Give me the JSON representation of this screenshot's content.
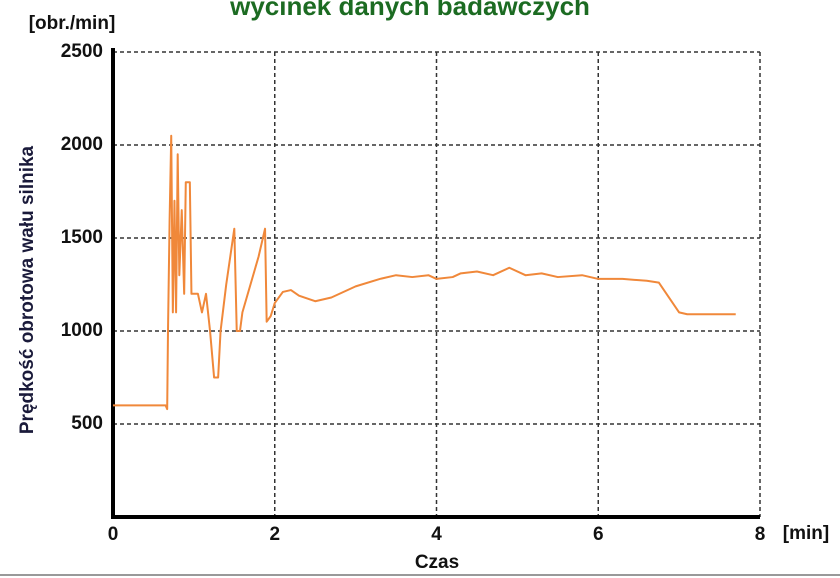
{
  "chart_data": {
    "type": "line",
    "title": "wycinek danych badawczych",
    "x_label": "Czas",
    "x_unit": "[min]",
    "y_label": "Prędkość obrotowa wału silnika",
    "y_unit": "[obr./min]",
    "xlim": [
      0,
      8
    ],
    "xticks": [
      0,
      2,
      4,
      6,
      8
    ],
    "ylim": [
      0,
      2500
    ],
    "yticks": [
      500,
      1000,
      1500,
      2000,
      2500
    ],
    "grid": true,
    "series": [
      {
        "color": "#f0883a",
        "x": [
          0,
          0.65,
          0.67,
          0.68,
          0.7,
          0.72,
          0.74,
          0.76,
          0.78,
          0.8,
          0.82,
          0.85,
          0.88,
          0.9,
          0.95,
          0.97,
          1.05,
          1.1,
          1.15,
          1.2,
          1.25,
          1.3,
          1.33,
          1.4,
          1.45,
          1.5,
          1.53,
          1.57,
          1.6,
          1.7,
          1.8,
          1.88,
          1.9,
          1.95,
          2.0,
          2.1,
          2.2,
          2.3,
          2.5,
          2.7,
          3.0,
          3.3,
          3.5,
          3.7,
          3.9,
          4.0,
          4.2,
          4.3,
          4.5,
          4.7,
          4.9,
          5.1,
          5.3,
          5.5,
          5.8,
          6.0,
          6.3,
          6.6,
          6.75,
          7.0,
          7.1,
          7.7
        ],
        "values": [
          600,
          600,
          580,
          1000,
          1600,
          2050,
          1100,
          1700,
          1100,
          1950,
          1300,
          1650,
          1200,
          1800,
          1800,
          1200,
          1200,
          1100,
          1200,
          1000,
          750,
          750,
          1000,
          1250,
          1400,
          1550,
          1000,
          1000,
          1100,
          1250,
          1400,
          1550,
          1050,
          1080,
          1150,
          1210,
          1220,
          1190,
          1160,
          1180,
          1240,
          1280,
          1300,
          1290,
          1300,
          1280,
          1290,
          1310,
          1320,
          1300,
          1340,
          1300,
          1310,
          1290,
          1300,
          1280,
          1280,
          1270,
          1260,
          1100,
          1090,
          1090
        ]
      }
    ]
  }
}
